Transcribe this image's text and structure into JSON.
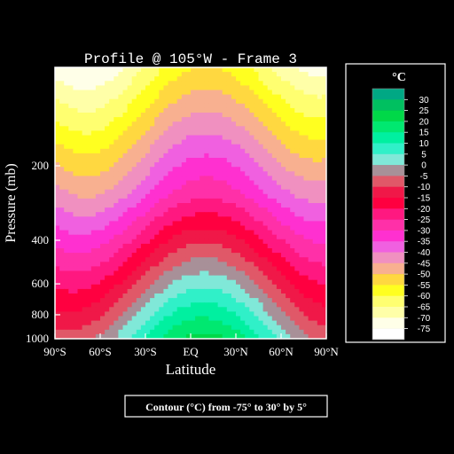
{
  "chart_data": {
    "type": "heatmap",
    "title": "Profile @ 105°W - Frame 3",
    "xlabel": "Latitude",
    "ylabel": "Pressure (mb)",
    "xlim": [
      -90,
      90
    ],
    "ylim": [
      1000,
      80
    ],
    "y_scale": "log",
    "x_ticks": [
      {
        "value": -90,
        "label": "90°S"
      },
      {
        "value": -60,
        "label": "60°S"
      },
      {
        "value": -30,
        "label": "30°S"
      },
      {
        "value": 0,
        "label": "EQ"
      },
      {
        "value": 30,
        "label": "30°N"
      },
      {
        "value": 60,
        "label": "60°N"
      },
      {
        "value": 90,
        "label": "90°N"
      }
    ],
    "y_ticks": [
      {
        "value": 200,
        "label": "200"
      },
      {
        "value": 400,
        "label": "400"
      },
      {
        "value": 600,
        "label": "600"
      },
      {
        "value": 800,
        "label": "800"
      },
      {
        "value": 1000,
        "label": "1000"
      }
    ],
    "colorbar": {
      "title": "°C",
      "levels": [
        30,
        25,
        20,
        15,
        10,
        5,
        0,
        -5,
        -10,
        -15,
        -20,
        -25,
        -30,
        -35,
        -40,
        -45,
        -50,
        -55,
        -60,
        -65,
        -70,
        -75
      ],
      "colors": [
        "#00a884",
        "#00c060",
        "#00d848",
        "#00e870",
        "#00f0a0",
        "#30f0c8",
        "#80e8d8",
        "#a89098",
        "#e05868",
        "#f01848",
        "#ff0040",
        "#ff1880",
        "#ff30a8",
        "#ff30d0",
        "#f060e0",
        "#f090c0",
        "#f8b090",
        "#ffd840",
        "#ffff20",
        "#ffff70",
        "#ffffa8",
        "#ffffe8",
        "#ffffff"
      ]
    },
    "footer": "Contour (°C) from -75° to 30° by 5°"
  }
}
